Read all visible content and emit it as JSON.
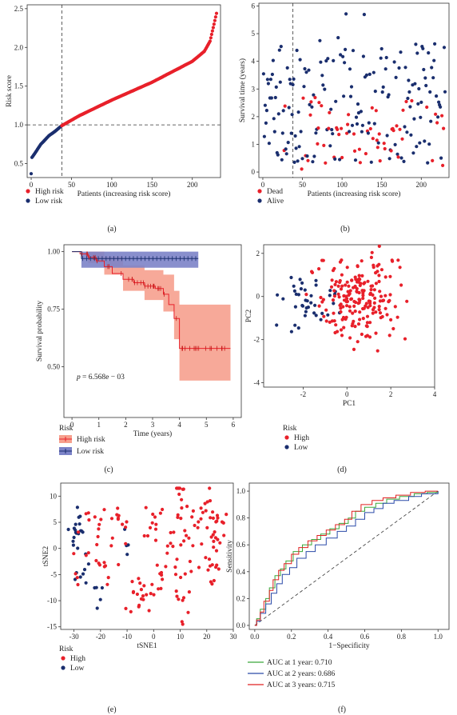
{
  "colors": {
    "high": "#e8202a",
    "low": "#1a2e6e",
    "dead": "#e8202a",
    "alive": "#1a2e6e",
    "km_high": "#f07060",
    "km_high_band": "#f6a08e",
    "km_low": "#4a55b0",
    "km_low_band": "#7c83c8",
    "roc1": "#3aa83a",
    "roc2": "#2a4aa8",
    "roc3": "#e02020"
  },
  "panels": [
    {
      "id": "a",
      "label": "(a)"
    },
    {
      "id": "b",
      "label": "(b)"
    },
    {
      "id": "c",
      "label": "(c)"
    },
    {
      "id": "d",
      "label": "(d)"
    },
    {
      "id": "e",
      "label": "(e)"
    },
    {
      "id": "f",
      "label": "(f)"
    }
  ],
  "chart_data": [
    {
      "panel": "a",
      "type": "scatter",
      "xlabel": "Patients (increasing risk score)",
      "ylabel": "Risk score",
      "xlim": [
        -5,
        235
      ],
      "ylim": [
        0.32,
        2.55
      ],
      "xticks": [
        0,
        50,
        100,
        150,
        200
      ],
      "yticks": [
        0.5,
        1.0,
        1.5,
        2.0,
        2.5
      ],
      "yticklabels": [
        "0.5",
        "1.0",
        "1.5",
        "2.0",
        "2.5"
      ],
      "cutoff_x": 38,
      "cutoff_y": 1.0,
      "n": 230,
      "n_low": 38,
      "curve_anchors": [
        [
          0,
          0.37
        ],
        [
          1,
          0.58
        ],
        [
          5,
          0.64
        ],
        [
          12,
          0.75
        ],
        [
          22,
          0.86
        ],
        [
          30,
          0.92
        ],
        [
          38,
          0.99
        ],
        [
          60,
          1.12
        ],
        [
          100,
          1.32
        ],
        [
          150,
          1.55
        ],
        [
          200,
          1.82
        ],
        [
          215,
          1.95
        ],
        [
          222,
          2.08
        ],
        [
          227,
          2.3
        ],
        [
          230,
          2.44
        ]
      ],
      "legend": [
        {
          "name": "High risk",
          "color": "#e8202a"
        },
        {
          "name": "Low risk",
          "color": "#1a2e6e"
        }
      ]
    },
    {
      "panel": "b",
      "type": "scatter",
      "xlabel": "Patients (increasing risk score)",
      "ylabel": "Survival time (years)",
      "xlim": [
        -5,
        235
      ],
      "ylim": [
        -0.2,
        6.1
      ],
      "xticks": [
        0,
        50,
        100,
        150,
        200
      ],
      "yticks": [
        0,
        1,
        2,
        3,
        4,
        5,
        6
      ],
      "cutoff_x": 38,
      "n_points": 230,
      "dead_fraction": 0.22,
      "legend": [
        {
          "name": "Dead",
          "color": "#e8202a"
        },
        {
          "name": "Alive",
          "color": "#1a2e6e"
        }
      ]
    },
    {
      "panel": "c",
      "type": "line",
      "xlabel": "Time (years)",
      "ylabel": "Survival probability",
      "xlim": [
        -0.3,
        6.3
      ],
      "ylim": [
        0.28,
        1.03
      ],
      "xticks": [
        0,
        1,
        2,
        3,
        4,
        5,
        6
      ],
      "yticks": [
        0.5,
        0.75,
        1.0
      ],
      "yticklabels": [
        "0.50",
        "0.75",
        "1.00"
      ],
      "annotation": {
        "p_label": "p",
        "p_text": " = 6.568e − 03"
      },
      "legend_title": "Risk",
      "series": [
        {
          "name": "High risk",
          "color": "#f07060",
          "steps": [
            [
              0,
              1.0
            ],
            [
              0.3,
              0.99
            ],
            [
              0.6,
              0.975
            ],
            [
              0.9,
              0.96
            ],
            [
              1.2,
              0.935
            ],
            [
              1.5,
              0.905
            ],
            [
              1.9,
              0.88
            ],
            [
              2.3,
              0.865
            ],
            [
              2.7,
              0.85
            ],
            [
              3.1,
              0.84
            ],
            [
              3.4,
              0.815
            ],
            [
              3.6,
              0.77
            ],
            [
              3.8,
              0.71
            ],
            [
              4.0,
              0.58
            ],
            [
              5.9,
              0.58
            ]
          ],
          "lower": [
            [
              0,
              1.0
            ],
            [
              0.6,
              0.95
            ],
            [
              1.2,
              0.9
            ],
            [
              1.9,
              0.83
            ],
            [
              2.7,
              0.79
            ],
            [
              3.4,
              0.74
            ],
            [
              3.8,
              0.62
            ],
            [
              4.0,
              0.44
            ],
            [
              5.9,
              0.44
            ]
          ],
          "upper": [
            [
              0,
              1.0
            ],
            [
              0.6,
              1.0
            ],
            [
              1.2,
              0.98
            ],
            [
              1.9,
              0.94
            ],
            [
              2.7,
              0.92
            ],
            [
              3.4,
              0.9
            ],
            [
              3.8,
              0.83
            ],
            [
              4.0,
              0.77
            ],
            [
              5.9,
              0.77
            ]
          ]
        },
        {
          "name": "Low risk",
          "color": "#4a55b0",
          "steps": [
            [
              0,
              1.0
            ],
            [
              0.35,
              0.97
            ],
            [
              4.7,
              0.97
            ]
          ],
          "lower": [
            [
              0,
              1.0
            ],
            [
              0.35,
              0.93
            ],
            [
              4.7,
              0.93
            ]
          ],
          "upper": [
            [
              0,
              1.0
            ],
            [
              4.7,
              1.0
            ]
          ]
        }
      ]
    },
    {
      "panel": "d",
      "type": "scatter",
      "xlabel": "PC1",
      "ylabel": "PC2",
      "xlim": [
        -3.8,
        4.0
      ],
      "ylim": [
        -4.2,
        2.4
      ],
      "xticks": [
        -2,
        0,
        2,
        4
      ],
      "yticks": [
        -4,
        -2,
        0,
        2
      ],
      "legend_title": "Risk",
      "legend": [
        {
          "name": "High",
          "color": "#e8202a"
        },
        {
          "name": "Low",
          "color": "#1a2e6e"
        }
      ]
    },
    {
      "panel": "e",
      "type": "scatter",
      "xlabel": "tSNE1",
      "ylabel": "tSNE2",
      "xlim": [
        -35,
        30
      ],
      "ylim": [
        -15.5,
        12.5
      ],
      "xticks": [
        -30,
        -20,
        -10,
        0,
        10,
        20,
        30
      ],
      "yticks": [
        -15,
        -10,
        -5,
        0,
        5,
        10
      ],
      "legend_title": "Risk",
      "legend": [
        {
          "name": "High",
          "color": "#e8202a"
        },
        {
          "name": "Low",
          "color": "#1a2e6e"
        }
      ]
    },
    {
      "panel": "f",
      "type": "line",
      "xlabel": "1−Specificity",
      "ylabel": "Sensitivity",
      "xlim": [
        -0.03,
        1.06
      ],
      "ylim": [
        -0.03,
        1.06
      ],
      "xticks": [
        0.0,
        0.2,
        0.4,
        0.6,
        0.8,
        1.0
      ],
      "yticks": [
        0.0,
        0.2,
        0.4,
        0.6,
        0.8,
        1.0
      ],
      "xticklabels": [
        "0.0",
        "0.2",
        "0.4",
        "0.6",
        "0.8",
        "1.0"
      ],
      "yticklabels": [
        "0.0",
        "0.2",
        "0.4",
        "0.6",
        "0.8",
        "1.0"
      ],
      "series": [
        {
          "name": "AUC at 1 year: 0.710",
          "color": "#3aa83a",
          "points": [
            [
              0,
              0
            ],
            [
              0.01,
              0.05
            ],
            [
              0.03,
              0.12
            ],
            [
              0.06,
              0.2
            ],
            [
              0.08,
              0.28
            ],
            [
              0.11,
              0.37
            ],
            [
              0.14,
              0.42
            ],
            [
              0.17,
              0.48
            ],
            [
              0.21,
              0.55
            ],
            [
              0.26,
              0.6
            ],
            [
              0.31,
              0.64
            ],
            [
              0.36,
              0.68
            ],
            [
              0.41,
              0.72
            ],
            [
              0.46,
              0.76
            ],
            [
              0.51,
              0.8
            ],
            [
              0.55,
              0.85
            ],
            [
              0.6,
              0.88
            ],
            [
              0.66,
              0.91
            ],
            [
              0.72,
              0.94
            ],
            [
              0.79,
              0.96
            ],
            [
              0.87,
              0.98
            ],
            [
              0.94,
              0.99
            ],
            [
              1,
              1
            ]
          ]
        },
        {
          "name": "AUC at 2 years: 0.686",
          "color": "#2a4aa8",
          "points": [
            [
              0,
              0
            ],
            [
              0.01,
              0.03
            ],
            [
              0.03,
              0.09
            ],
            [
              0.06,
              0.16
            ],
            [
              0.09,
              0.24
            ],
            [
              0.12,
              0.31
            ],
            [
              0.15,
              0.38
            ],
            [
              0.19,
              0.43
            ],
            [
              0.23,
              0.5
            ],
            [
              0.28,
              0.55
            ],
            [
              0.33,
              0.6
            ],
            [
              0.39,
              0.65
            ],
            [
              0.45,
              0.7
            ],
            [
              0.5,
              0.74
            ],
            [
              0.55,
              0.79
            ],
            [
              0.6,
              0.84
            ],
            [
              0.65,
              0.87
            ],
            [
              0.7,
              0.91
            ],
            [
              0.76,
              0.93
            ],
            [
              0.84,
              0.96
            ],
            [
              0.91,
              0.98
            ],
            [
              1,
              1
            ]
          ]
        },
        {
          "name": "AUC at 3 years: 0.715",
          "color": "#e02020",
          "points": [
            [
              0,
              0
            ],
            [
              0.01,
              0.04
            ],
            [
              0.03,
              0.1
            ],
            [
              0.05,
              0.18
            ],
            [
              0.08,
              0.26
            ],
            [
              0.1,
              0.34
            ],
            [
              0.13,
              0.41
            ],
            [
              0.16,
              0.46
            ],
            [
              0.2,
              0.53
            ],
            [
              0.24,
              0.58
            ],
            [
              0.29,
              0.63
            ],
            [
              0.34,
              0.67
            ],
            [
              0.39,
              0.71
            ],
            [
              0.44,
              0.75
            ],
            [
              0.49,
              0.79
            ],
            [
              0.53,
              0.85
            ],
            [
              0.58,
              0.9
            ],
            [
              0.64,
              0.93
            ],
            [
              0.7,
              0.95
            ],
            [
              0.77,
              0.97
            ],
            [
              0.85,
              0.99
            ],
            [
              0.93,
              1.0
            ],
            [
              1,
              1
            ]
          ]
        }
      ]
    }
  ]
}
